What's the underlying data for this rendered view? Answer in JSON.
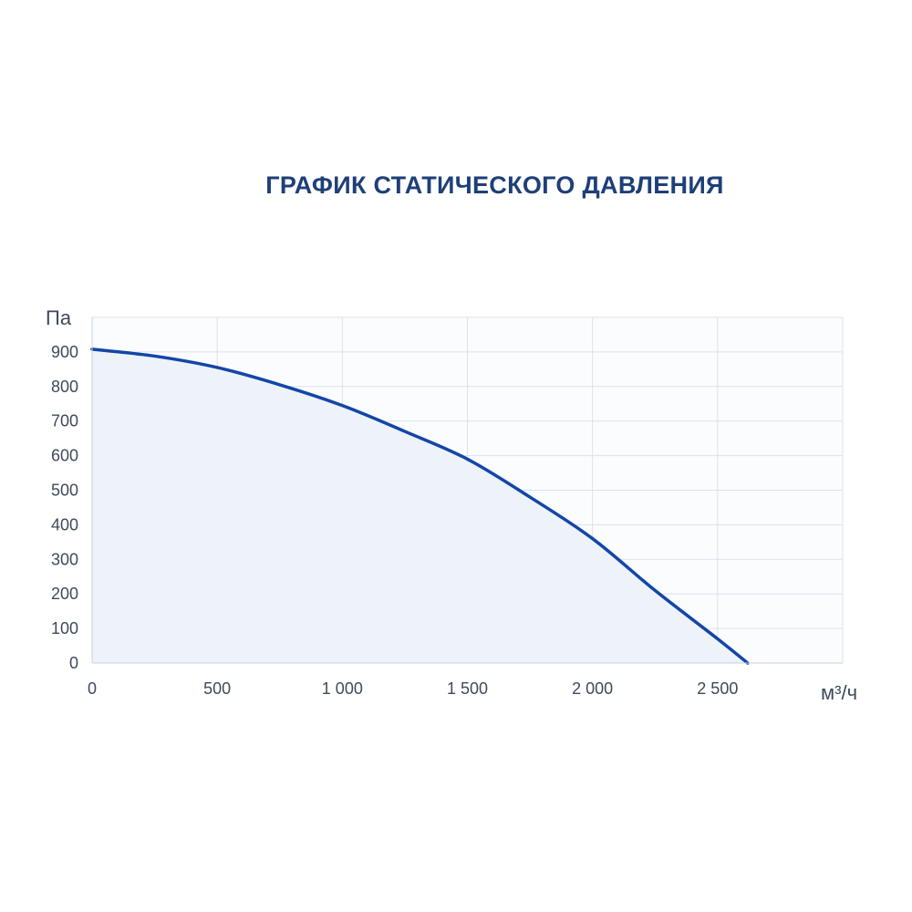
{
  "chart_data": {
    "type": "area",
    "title": "ГРАФИК СТАТИЧЕСКОГО ДАВЛЕНИЯ",
    "xlabel": "м³/ч",
    "ylabel": "Па",
    "xlim": [
      0,
      3000
    ],
    "ylim": [
      0,
      1000
    ],
    "grid": true,
    "x_ticks": [
      {
        "value": 0,
        "label": "0"
      },
      {
        "value": 500,
        "label": "500"
      },
      {
        "value": 1000,
        "label": "1 000"
      },
      {
        "value": 1500,
        "label": "1 500"
      },
      {
        "value": 2000,
        "label": "2 000"
      },
      {
        "value": 2500,
        "label": "2 500"
      }
    ],
    "y_ticks": [
      {
        "value": 0,
        "label": "0"
      },
      {
        "value": 100,
        "label": "100"
      },
      {
        "value": 200,
        "label": "200"
      },
      {
        "value": 300,
        "label": "300"
      },
      {
        "value": 400,
        "label": "400"
      },
      {
        "value": 500,
        "label": "500"
      },
      {
        "value": 600,
        "label": "600"
      },
      {
        "value": 700,
        "label": "700"
      },
      {
        "value": 800,
        "label": "800"
      },
      {
        "value": 900,
        "label": "900"
      }
    ],
    "series": [
      {
        "color": "#1446a8",
        "fill": "#eef3fa",
        "x": [
          0,
          250,
          500,
          750,
          1000,
          1250,
          1500,
          1750,
          2000,
          2250,
          2500,
          2620
        ],
        "y": [
          908,
          888,
          855,
          805,
          745,
          670,
          590,
          480,
          360,
          210,
          70,
          0
        ]
      }
    ]
  }
}
